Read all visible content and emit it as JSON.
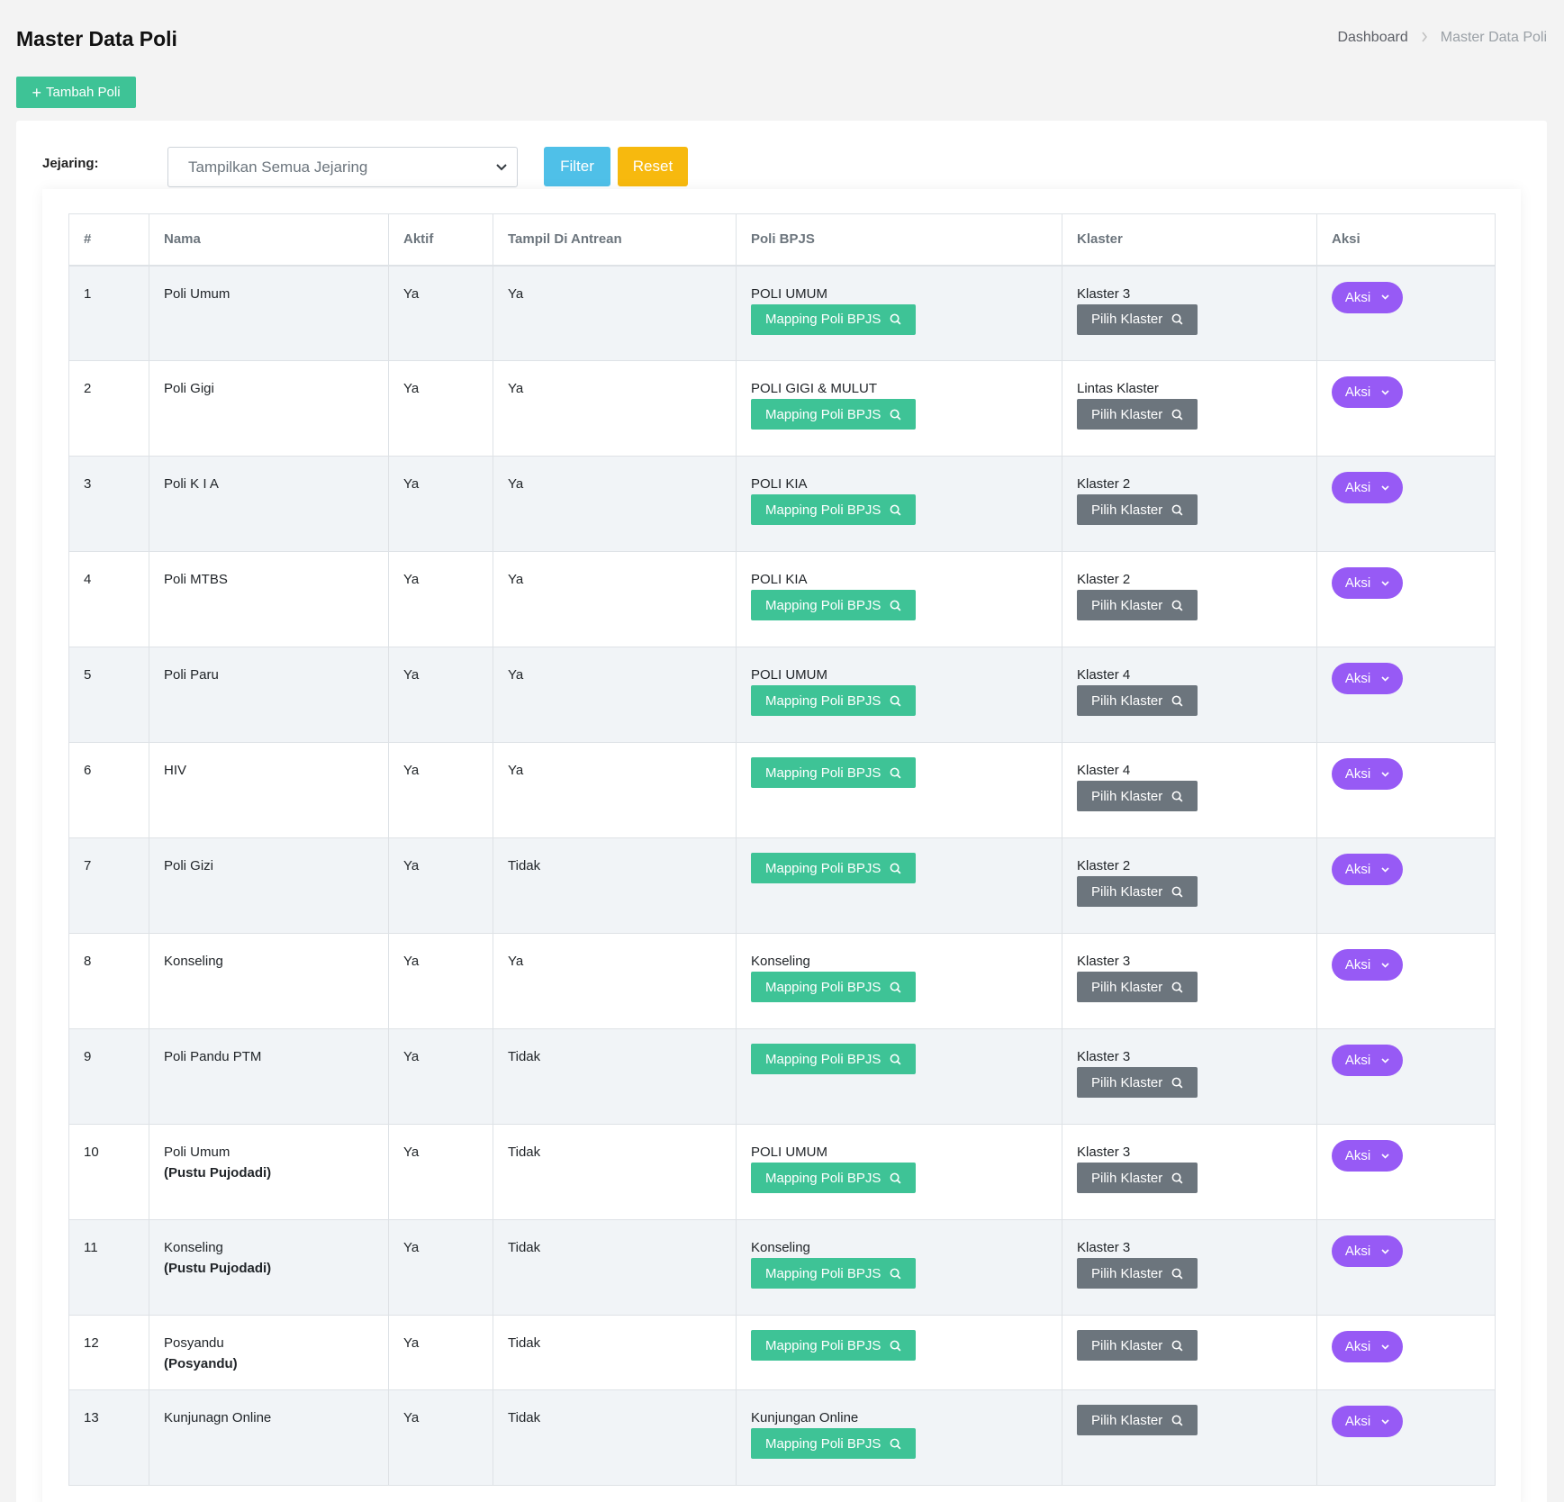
{
  "page": {
    "title": "Master Data Poli",
    "breadcrumb": [
      "Dashboard",
      "Master Data Poli"
    ],
    "add_button_label": "Tambah Poli"
  },
  "filter": {
    "label": "Jejaring:",
    "select_value": "Tampilkan Semua Jejaring",
    "filter_label": "Filter",
    "reset_label": "Reset"
  },
  "colors": {
    "accent_green": "#3ec396",
    "filter_blue": "#4fc0e8",
    "reset_yellow": "#f7b90e",
    "aksi_purple": "#975af5",
    "klaster_gray": "#6c757d"
  },
  "icons": {
    "add": "plus-icon",
    "select": "chevron-down-icon",
    "search": "search-icon",
    "aksi": "chevron-down-icon"
  },
  "table": {
    "headers": [
      "#",
      "Nama",
      "Aktif",
      "Tampil Di Antrean",
      "Poli BPJS",
      "Klaster",
      "Aksi"
    ],
    "mapping_label": "Mapping Poli BPJS",
    "klaster_button_label": "Pilih Klaster",
    "aksi_label": "Aksi",
    "rows": [
      {
        "no": "1",
        "nama": "Poli Umum",
        "sub": "",
        "aktif": "Ya",
        "antrean": "Ya",
        "bpjs": "POLI UMUM",
        "klaster": "Klaster 3"
      },
      {
        "no": "2",
        "nama": "Poli Gigi",
        "sub": "",
        "aktif": "Ya",
        "antrean": "Ya",
        "bpjs": "POLI GIGI & MULUT",
        "klaster": "Lintas Klaster"
      },
      {
        "no": "3",
        "nama": "Poli K I A",
        "sub": "",
        "aktif": "Ya",
        "antrean": "Ya",
        "bpjs": "POLI KIA",
        "klaster": "Klaster 2"
      },
      {
        "no": "4",
        "nama": "Poli MTBS",
        "sub": "",
        "aktif": "Ya",
        "antrean": "Ya",
        "bpjs": "POLI KIA",
        "klaster": "Klaster 2"
      },
      {
        "no": "5",
        "nama": "Poli Paru",
        "sub": "",
        "aktif": "Ya",
        "antrean": "Ya",
        "bpjs": "POLI UMUM",
        "klaster": "Klaster 4"
      },
      {
        "no": "6",
        "nama": "HIV",
        "sub": "",
        "aktif": "Ya",
        "antrean": "Ya",
        "bpjs": "",
        "klaster": "Klaster 4"
      },
      {
        "no": "7",
        "nama": "Poli Gizi",
        "sub": "",
        "aktif": "Ya",
        "antrean": "Tidak",
        "bpjs": "",
        "klaster": "Klaster 2"
      },
      {
        "no": "8",
        "nama": "Konseling",
        "sub": "",
        "aktif": "Ya",
        "antrean": "Ya",
        "bpjs": "Konseling",
        "klaster": "Klaster 3"
      },
      {
        "no": "9",
        "nama": "Poli Pandu PTM",
        "sub": "",
        "aktif": "Ya",
        "antrean": "Tidak",
        "bpjs": "",
        "klaster": "Klaster 3"
      },
      {
        "no": "10",
        "nama": "Poli Umum",
        "sub": "(Pustu Pujodadi)",
        "aktif": "Ya",
        "antrean": "Tidak",
        "bpjs": "POLI UMUM",
        "klaster": "Klaster 3"
      },
      {
        "no": "11",
        "nama": "Konseling",
        "sub": "(Pustu Pujodadi)",
        "aktif": "Ya",
        "antrean": "Tidak",
        "bpjs": "Konseling",
        "klaster": "Klaster 3"
      },
      {
        "no": "12",
        "nama": "Posyandu",
        "sub": "(Posyandu)",
        "aktif": "Ya",
        "antrean": "Tidak",
        "bpjs": "",
        "klaster": ""
      },
      {
        "no": "13",
        "nama": "Kunjunagn Online",
        "sub": "",
        "aktif": "Ya",
        "antrean": "Tidak",
        "bpjs": "Kunjungan Online",
        "klaster": ""
      }
    ]
  }
}
